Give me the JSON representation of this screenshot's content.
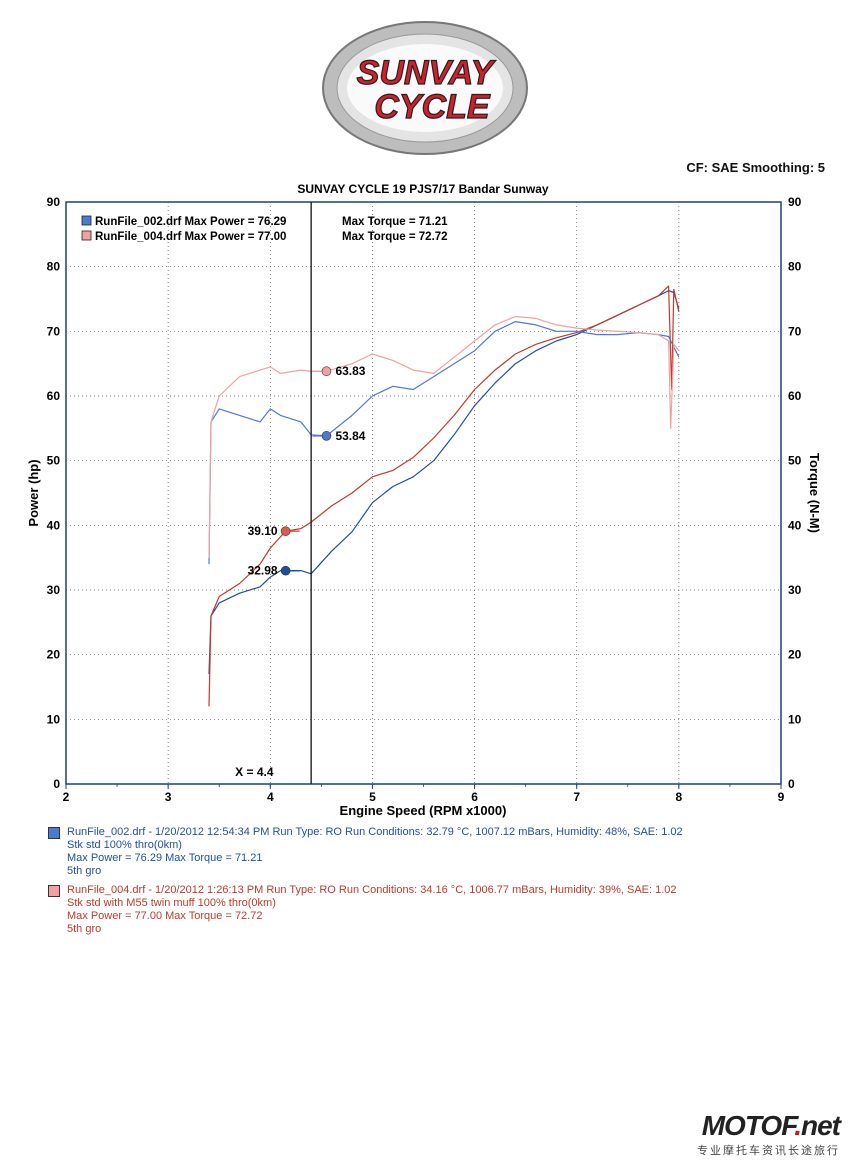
{
  "header": {
    "brand_line1": "SUNVAY",
    "brand_line2": "CYCLE",
    "cf_line": "CF: SAE  Smoothing: 5"
  },
  "chart_data": {
    "type": "line",
    "title": "SUNVAY CYCLE 19 PJS7/17 Bandar Sunway",
    "xlabel": "Engine Speed (RPM x1000)",
    "ylabel_left": "Power (hp)",
    "ylabel_right": "Torque (N-M)",
    "xlim": [
      2,
      9
    ],
    "ylim": [
      0,
      90
    ],
    "x_ticks": [
      "2",
      "3",
      "4",
      "5",
      "6",
      "7",
      "8",
      "9"
    ],
    "y_ticks": [
      "0",
      "10",
      "20",
      "30",
      "40",
      "50",
      "60",
      "70",
      "80",
      "90"
    ],
    "grid": true,
    "cursor": {
      "x": 4.4,
      "label": "X = 4.4"
    },
    "legend": [
      {
        "text": "RunFile_002.drf Max Power = 76.29",
        "torque_text": "Max Torque = 71.21",
        "color": "#1f4f9c"
      },
      {
        "text": "RunFile_004.drf Max Power = 77.00",
        "torque_text": "Max Torque = 72.72",
        "color": "#c0392b"
      }
    ],
    "markers": [
      {
        "x": 4.55,
        "y": 63.83,
        "label": "63.83",
        "color": "#f2a0a0",
        "side": "right"
      },
      {
        "x": 4.55,
        "y": 53.84,
        "label": "53.84",
        "color": "#4a7bd0",
        "side": "right"
      },
      {
        "x": 4.15,
        "y": 39.1,
        "label": "39.10",
        "color": "#e05a4e",
        "side": "left"
      },
      {
        "x": 4.15,
        "y": 32.98,
        "label": "32.98",
        "color": "#1f4f9c",
        "side": "left"
      }
    ],
    "series": [
      {
        "name": "RunFile_002.drf Power",
        "color": "#1f4f9c",
        "x": [
          3.4,
          3.42,
          3.5,
          3.7,
          3.9,
          4.0,
          4.1,
          4.3,
          4.4,
          4.6,
          4.8,
          5.0,
          5.2,
          5.4,
          5.6,
          5.8,
          6.0,
          6.2,
          6.4,
          6.6,
          6.8,
          7.0,
          7.2,
          7.4,
          7.6,
          7.8,
          7.9,
          7.95,
          8.0
        ],
        "y": [
          17,
          26,
          28,
          29.5,
          30.5,
          32,
          33,
          33,
          32.5,
          36,
          39,
          43.5,
          46,
          47.5,
          50,
          54,
          58.5,
          62,
          65,
          67,
          68.5,
          69.5,
          71,
          72.5,
          74,
          75.5,
          76.3,
          76,
          73.5
        ]
      },
      {
        "name": "RunFile_004.drf Power",
        "color": "#c0392b",
        "x": [
          3.4,
          3.42,
          3.5,
          3.7,
          3.9,
          4.0,
          4.15,
          4.3,
          4.4,
          4.6,
          4.8,
          5.0,
          5.2,
          5.4,
          5.6,
          5.8,
          6.0,
          6.2,
          6.4,
          6.6,
          6.8,
          7.0,
          7.2,
          7.4,
          7.6,
          7.8,
          7.9,
          7.93,
          7.95,
          8.0
        ],
        "y": [
          12,
          26,
          29,
          31,
          34,
          36.5,
          39.1,
          39.5,
          40.5,
          43,
          45,
          47.5,
          48.5,
          50.5,
          53.5,
          57,
          61,
          64,
          66.5,
          68,
          69,
          69.8,
          71,
          72.5,
          74,
          75.5,
          77,
          61,
          76.5,
          73
        ]
      },
      {
        "name": "RunFile_002.drf Torque",
        "color": "#4a7bd0",
        "x": [
          3.4,
          3.42,
          3.5,
          3.7,
          3.9,
          4.0,
          4.1,
          4.3,
          4.4,
          4.55,
          4.8,
          5.0,
          5.2,
          5.4,
          5.6,
          5.8,
          6.0,
          6.2,
          6.4,
          6.6,
          6.8,
          7.0,
          7.2,
          7.4,
          7.6,
          7.8,
          7.9,
          8.0
        ],
        "y": [
          34,
          56,
          58,
          57,
          56,
          58,
          57,
          56,
          54,
          53.84,
          57,
          60,
          61.5,
          61,
          63,
          65,
          67,
          70,
          71.5,
          71,
          70,
          70,
          69.5,
          69.5,
          69.8,
          69.5,
          69.2,
          66
        ]
      },
      {
        "name": "RunFile_004.drf Torque",
        "color": "#f2a0a0",
        "x": [
          3.4,
          3.42,
          3.5,
          3.7,
          3.9,
          4.0,
          4.1,
          4.3,
          4.4,
          4.55,
          4.8,
          5.0,
          5.2,
          5.4,
          5.6,
          5.8,
          6.0,
          6.2,
          6.4,
          6.6,
          6.8,
          7.0,
          7.2,
          7.4,
          7.6,
          7.8,
          7.9,
          7.92,
          7.95,
          8.0
        ],
        "y": [
          35,
          56,
          60,
          63,
          64,
          64.5,
          63.5,
          64,
          63.8,
          63.83,
          65,
          66.5,
          65.5,
          64,
          63.5,
          66,
          68.5,
          71,
          72.3,
          72,
          71,
          70.5,
          70.2,
          70,
          69.8,
          69.5,
          68.5,
          55,
          68,
          67
        ]
      }
    ]
  },
  "runs": [
    {
      "line1": "RunFile_002.drf - 1/20/2012 12:54:34 PM  Run Type: RO  Run Conditions: 32.79 °C, 1007.12 mBars,  Humidity:  48%, SAE: 1.02",
      "line2": "Stk std 100% thro(0km)",
      "line3": "Max Power = 76.29  Max Torque = 71.21",
      "line4": "5th gro",
      "color": "#1f4f9c"
    },
    {
      "line1": "RunFile_004.drf - 1/20/2012 1:26:13 PM  Run Type: RO  Run Conditions: 34.16 °C, 1006.77 mBars,  Humidity:  39%, SAE: 1.02",
      "line2": "Stk std with M55 twin muff 100% thro(0km)",
      "line3": "Max Power = 77.00  Max Torque = 72.72",
      "line4": "5th gro",
      "color": "#c0392b"
    }
  ],
  "watermark": {
    "main_a": "MOTOF",
    "main_dot": ".",
    "main_b": "net",
    "sub": "专业摩托车资讯长途旅行"
  }
}
